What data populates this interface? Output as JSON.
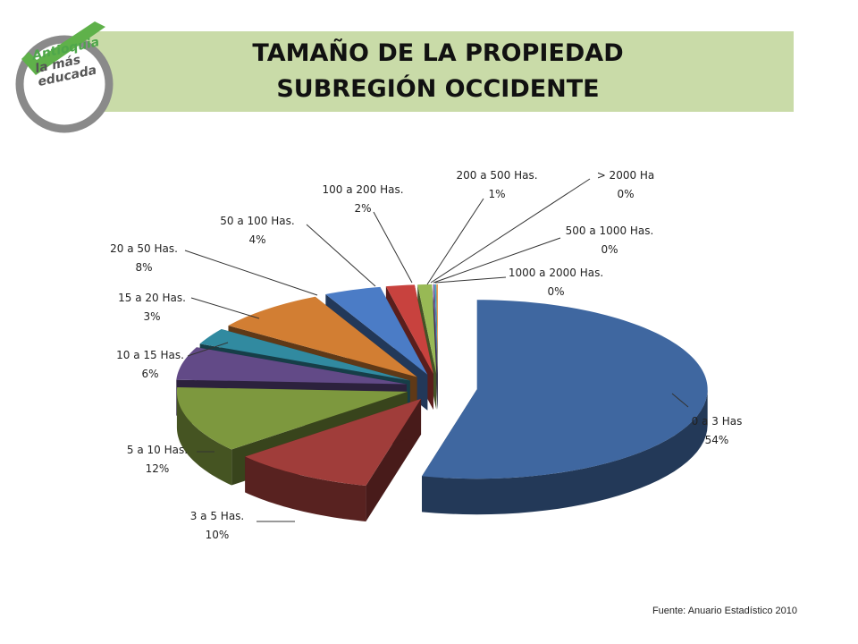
{
  "title": {
    "line1": "TAMAÑO DE LA PROPIEDAD",
    "line2": "SUBREGIÓN OCCIDENTE"
  },
  "logo": {
    "line1": "Antioquia",
    "line2": "la más",
    "line3": "educada",
    "icon": "checkmark-logo-icon"
  },
  "source": "Fuente: Anuario Estadístico 2010",
  "colors": {
    "title_band": "#c9dba8",
    "logo_check": "#5fb14a",
    "logo_ring": "#8a8a8a"
  },
  "chart_data": {
    "type": "pie",
    "style": "3d-exploded",
    "title": "",
    "legend": "none",
    "slices": [
      {
        "label": "0 a 3 Has",
        "value": 54,
        "percent_text": "54%",
        "color": "#3f67a0"
      },
      {
        "label": "3 a 5 Has.",
        "value": 10,
        "percent_text": "10%",
        "color": "#a03d3a"
      },
      {
        "label": "5 a 10 Has.",
        "value": 12,
        "percent_text": "12%",
        "color": "#7d983e"
      },
      {
        "label": "10 a 15 Has.",
        "value": 6,
        "percent_text": "6%",
        "color": "#624a87"
      },
      {
        "label": "15 a 20 Has.",
        "value": 3,
        "percent_text": "3%",
        "color": "#318aa0"
      },
      {
        "label": "20 a 50 Has.",
        "value": 8,
        "percent_text": "8%",
        "color": "#d27e33"
      },
      {
        "label": "50 a  100 Has.",
        "value": 4,
        "percent_text": "4%",
        "color": "#4b7cc6"
      },
      {
        "label": "100 a 200 Has.",
        "value": 2,
        "percent_text": "2%",
        "color": "#c8423e"
      },
      {
        "label": "200 a 500 Has.",
        "value": 1,
        "percent_text": "1%",
        "color": "#98b955"
      },
      {
        "label": "500 a 1000 Has.",
        "value": 0.1,
        "percent_text": "0%",
        "color": "#7a5ea8"
      },
      {
        "label": "1000 a 2000 Has.",
        "value": 0.1,
        "percent_text": "0%",
        "color": "#3fa9c6"
      },
      {
        "label": "> 2000 Ha",
        "value": 0.1,
        "percent_text": "0%",
        "color": "#e68f3f"
      }
    ]
  }
}
